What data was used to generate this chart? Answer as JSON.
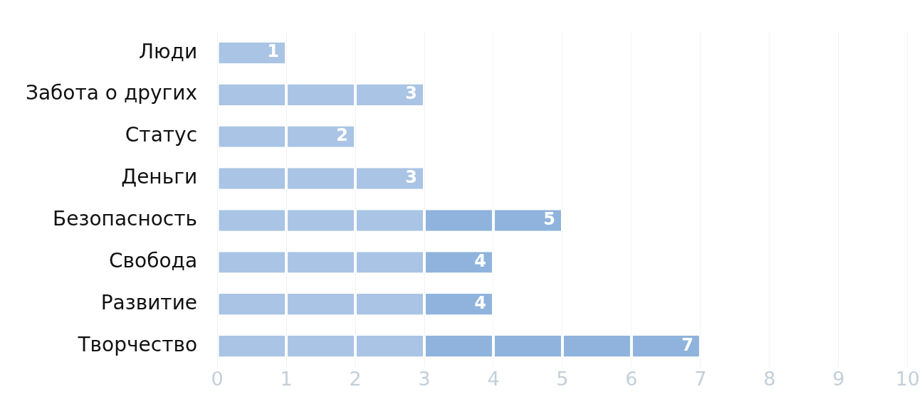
{
  "chart_data": {
    "type": "bar",
    "orientation": "horizontal",
    "stacked": true,
    "categories": [
      "Люди",
      "Забота о других",
      "Статус",
      "Деньги",
      "Безопасность",
      "Свобода",
      "Развитие",
      "Творчество"
    ],
    "series": [
      {
        "color": "#a9c4e4",
        "values": [
          1,
          1,
          1,
          1,
          1,
          1,
          1,
          1
        ]
      },
      {
        "color": "#a9c4e4",
        "values": [
          null,
          1,
          1,
          1,
          1,
          1,
          1,
          1
        ]
      },
      {
        "color": "#a9c4e4",
        "values": [
          null,
          1,
          null,
          1,
          1,
          1,
          1,
          1
        ]
      },
      {
        "color": "#8fb3dc",
        "values": [
          null,
          null,
          null,
          null,
          1,
          1,
          1,
          1
        ]
      },
      {
        "color": "#8fb3dc",
        "values": [
          null,
          null,
          null,
          null,
          1,
          null,
          null,
          1
        ]
      },
      {
        "color": "#8fb3dc",
        "values": [
          null,
          null,
          null,
          null,
          null,
          null,
          null,
          1
        ]
      },
      {
        "color": "#8fb3dc",
        "values": [
          null,
          null,
          null,
          null,
          null,
          null,
          null,
          1
        ]
      }
    ],
    "totals": [
      "1",
      "3",
      "2",
      "3",
      "5",
      "4",
      "4",
      "7"
    ],
    "xlim": [
      0,
      10
    ],
    "xticks": [
      0,
      1,
      2,
      3,
      4,
      5,
      6,
      7,
      8,
      9,
      10
    ],
    "grid": "x",
    "legend": false
  }
}
